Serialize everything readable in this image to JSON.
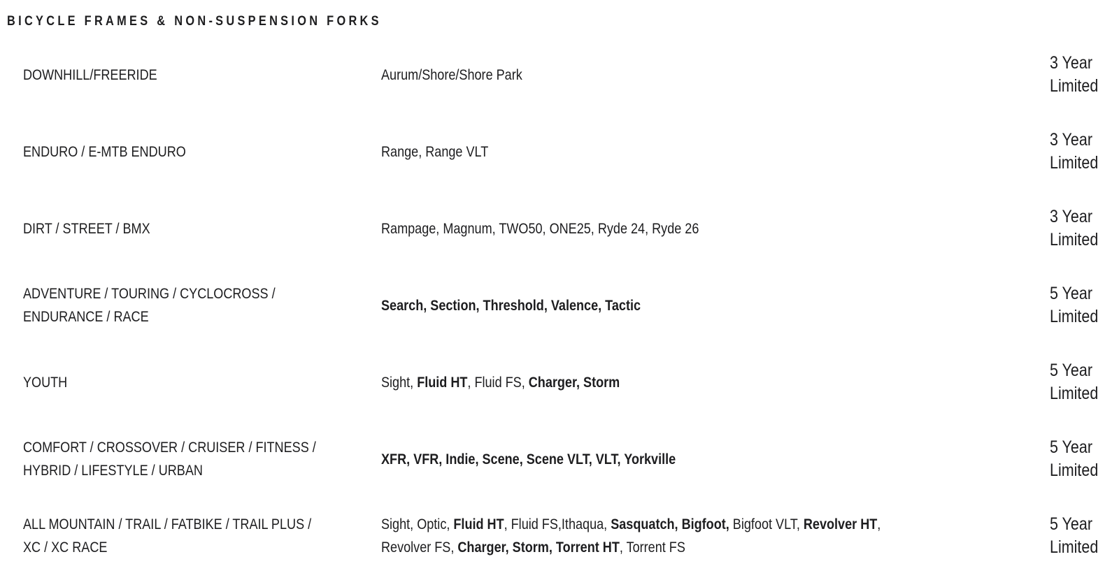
{
  "section": {
    "title": "BICYCLE FRAMES & NON-SUSPENSION FORKS"
  },
  "colors": {
    "text": "#1d1d1f",
    "background": "#ffffff"
  },
  "table": {
    "rows": [
      {
        "category": "DOWNHILL/FREERIDE",
        "models": [
          {
            "text": "Aurum/Shore/Shore Park",
            "bold": false
          }
        ],
        "warranty": "3 Year\nLimited"
      },
      {
        "category": "ENDURO / E-MTB ENDURO",
        "models": [
          {
            "text": "Range, Range VLT",
            "bold": false
          }
        ],
        "warranty": "3 Year\nLimited"
      },
      {
        "category": "DIRT / STREET / BMX",
        "models": [
          {
            "text": "Rampage, Magnum, TWO50, ONE25, Ryde 24, Ryde 26",
            "bold": false
          }
        ],
        "warranty": "3 Year\nLimited"
      },
      {
        "category": "ADVENTURE / TOURING / CYCLOCROSS /\nENDURANCE / RACE",
        "models": [
          {
            "text": "Search, Section, Threshold, Valence, Tactic",
            "bold": true
          }
        ],
        "warranty": "5 Year\nLimited"
      },
      {
        "category": "YOUTH",
        "models": [
          {
            "text": "Sight, ",
            "bold": false
          },
          {
            "text": "Fluid HT",
            "bold": true
          },
          {
            "text": ", Fluid FS, ",
            "bold": false
          },
          {
            "text": "Charger, Storm",
            "bold": true
          }
        ],
        "warranty": "5 Year\nLimited"
      },
      {
        "category": "COMFORT / CROSSOVER / CRUISER / FITNESS /\nHYBRID / LIFESTYLE / URBAN",
        "models": [
          {
            "text": "XFR, VFR, Indie, Scene, Scene VLT, VLT, Yorkville",
            "bold": true
          }
        ],
        "warranty": "5 Year\nLimited"
      },
      {
        "category": "ALL MOUNTAIN / TRAIL / FATBIKE / TRAIL PLUS /\nXC / XC RACE",
        "models": [
          {
            "text": "Sight, Optic, ",
            "bold": false
          },
          {
            "text": "Fluid HT",
            "bold": true
          },
          {
            "text": ", Fluid FS,Ithaqua, ",
            "bold": false
          },
          {
            "text": "Sasquatch, Bigfoot,",
            "bold": true
          },
          {
            "text": " Bigfoot VLT, ",
            "bold": false
          },
          {
            "text": "Revolver HT",
            "bold": true
          },
          {
            "text": ",\nRevolver FS, ",
            "bold": false
          },
          {
            "text": "Charger, Storm, Torrent HT",
            "bold": true
          },
          {
            "text": ", Torrent FS",
            "bold": false
          }
        ],
        "warranty": "5 Year\nLimited"
      }
    ]
  }
}
